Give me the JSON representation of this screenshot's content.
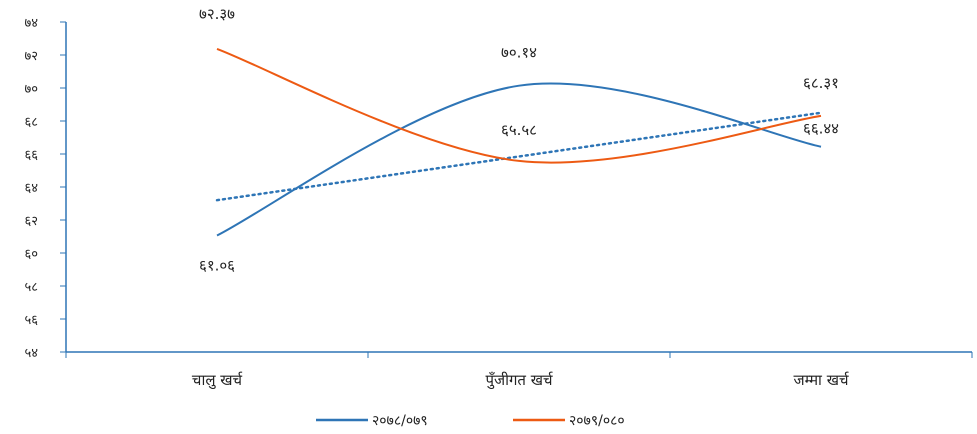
{
  "chart_data": {
    "type": "line",
    "title": "",
    "xlabel": "",
    "ylabel": "",
    "categories": [
      "चालु खर्च",
      "पुँजीगत खर्च",
      "जम्मा खर्च"
    ],
    "ylim": [
      54,
      74
    ],
    "yticks": [
      54,
      56,
      58,
      60,
      62,
      64,
      66,
      68,
      70,
      72,
      74
    ],
    "ytick_labels": [
      "५४",
      "५६",
      "५८",
      "६०",
      "६२",
      "६४",
      "६६",
      "६८",
      "७०",
      "७२",
      "७४"
    ],
    "grid": false,
    "legend_position": "bottom",
    "series": [
      {
        "name": "२०७८/०७९",
        "color": "#2e75b6",
        "smooth": true,
        "values": [
          61.06,
          70.14,
          66.44
        ],
        "labels": [
          "६१.०६",
          "७०.१४",
          "६६.४४"
        ]
      },
      {
        "name": "२०७९/०८०",
        "color": "#ed5a13",
        "smooth": true,
        "values": [
          72.37,
          65.58,
          68.31
        ],
        "labels": [
          "७२.३७",
          "६५.५८",
          "६८.३१"
        ]
      }
    ],
    "trendline": {
      "series": "२०७८/०७९",
      "style": "dotted",
      "color": "#2e75b6",
      "start": 63.2,
      "end": 68.5
    }
  }
}
